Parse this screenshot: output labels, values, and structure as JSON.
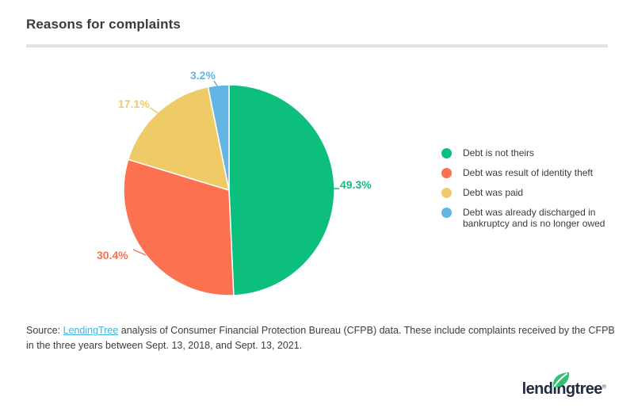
{
  "header": {
    "title": "Reasons for complaints"
  },
  "chart_data": {
    "type": "pie",
    "title": "Reasons for complaints",
    "categories": [
      "Debt is not theirs",
      "Debt was result of identity theft",
      "Debt was paid",
      "Debt was already discharged in bankruptcy and is no longer owed"
    ],
    "values": [
      49.3,
      30.4,
      17.1,
      3.2
    ],
    "slice_labels": [
      "49.3%",
      "30.4%",
      "17.1%",
      "3.2%"
    ],
    "colors": [
      "#0dbf7c",
      "#fc7150",
      "#efcb68",
      "#63b5e6"
    ],
    "slugs": [
      "debt-not-theirs",
      "identity-theft",
      "debt-paid",
      "discharged-bankruptcy"
    ],
    "units": "%",
    "start_angle_deg": 0,
    "direction": "clockwise",
    "legend_position": "right",
    "stroke_between_slices": "#ffffff"
  },
  "legend": {
    "items": [
      {
        "label": "Debt is not theirs",
        "color": "#0dbf7c"
      },
      {
        "label": "Debt was result of identity theft",
        "color": "#fc7150"
      },
      {
        "label": "Debt was paid",
        "color": "#efcb68"
      },
      {
        "label": "Debt was already discharged in bankruptcy and is no longer owed",
        "color": "#63b5e6"
      }
    ]
  },
  "source": {
    "prefix": "Source: ",
    "link_text": "LendingTree",
    "suffix": " analysis of Consumer Financial Protection Bureau (CFPB) data. These include complaints received by the CFPB in the three years between Sept. 13, 2018, and Sept. 13, 2021."
  },
  "footer": {
    "logo_text": "lendingtree",
    "logo_mark": "®"
  }
}
